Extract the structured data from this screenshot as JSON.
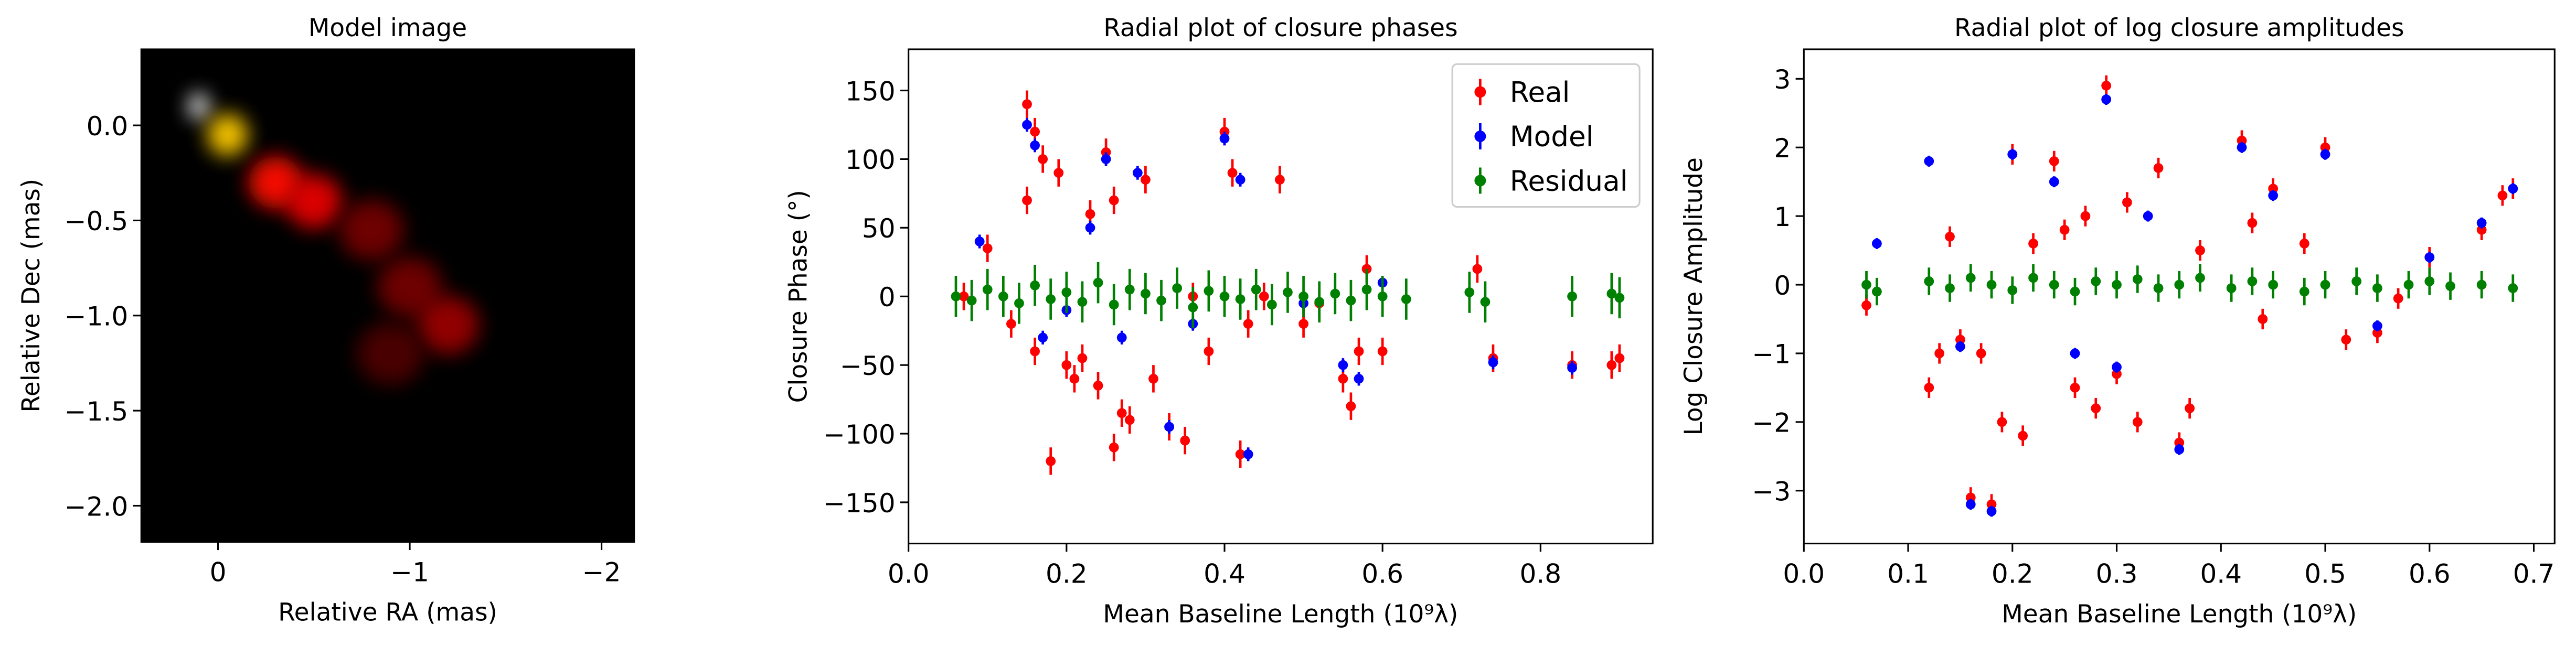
{
  "chart_data": [
    {
      "type": "image",
      "title": "Model image",
      "xlabel": "Relative RA (mas)",
      "ylabel": "Relative Dec (mas)",
      "x": [
        0.1,
        -0.05,
        -0.3,
        -0.5,
        -0.8,
        -1.0,
        -1.2,
        -0.9
      ],
      "y": [
        0.1,
        -0.05,
        -0.3,
        -0.4,
        -0.55,
        -0.85,
        -1.05,
        -1.2
      ],
      "values": [
        1.0,
        0.6,
        0.35,
        0.3,
        0.15,
        0.15,
        0.2,
        0.1
      ],
      "xlim": [
        0.4,
        -2.17
      ],
      "ylim": [
        -2.19,
        0.4
      ],
      "xticks": [
        0,
        {
          "value": -1,
          "label": "−1"
        },
        {
          "value": -2,
          "label": "−2"
        }
      ],
      "yticks": [
        {
          "value": 0,
          "label": "0.0"
        },
        {
          "value": -0.5,
          "label": "−0.5"
        },
        {
          "value": -1,
          "label": "−1.0"
        },
        {
          "value": -1.5,
          "label": "−1.5"
        },
        {
          "value": -2,
          "label": "−2.0"
        }
      ]
    },
    {
      "type": "errorbar",
      "title": "Radial plot of closure phases",
      "xlabel": "Mean Baseline Length (10⁹λ)",
      "ylabel": "Closure Phase (°)",
      "xlim": [
        0,
        0.942
      ],
      "ylim": [
        -180,
        180
      ],
      "xticks": [
        {
          "value": 0,
          "label": "0.0"
        },
        0.2,
        0.4,
        0.6,
        0.8
      ],
      "yticks": [
        {
          "value": -150,
          "label": "−150"
        },
        {
          "value": -100,
          "label": "−100"
        },
        {
          "value": -50,
          "label": "−50"
        },
        0,
        50,
        100,
        150
      ],
      "legend": "upper right",
      "series": [
        {
          "name": "Real",
          "color": "#ff0000",
          "error": 10,
          "x": [
            0.07,
            0.1,
            0.13,
            0.15,
            0.15,
            0.16,
            0.16,
            0.17,
            0.18,
            0.19,
            0.2,
            0.21,
            0.22,
            0.23,
            0.24,
            0.25,
            0.26,
            0.26,
            0.27,
            0.28,
            0.3,
            0.31,
            0.33,
            0.35,
            0.36,
            0.38,
            0.4,
            0.41,
            0.42,
            0.43,
            0.45,
            0.47,
            0.5,
            0.52,
            0.55,
            0.56,
            0.57,
            0.58,
            0.6,
            0.72,
            0.74,
            0.84,
            0.89,
            0.9
          ],
          "values": [
            0,
            35,
            -20,
            140,
            70,
            120,
            -40,
            100,
            -120,
            90,
            -50,
            -60,
            -45,
            60,
            -65,
            105,
            -110,
            70,
            -85,
            -90,
            85,
            -60,
            -95,
            -105,
            0,
            -40,
            120,
            90,
            -115,
            -20,
            0,
            85,
            -20,
            -5,
            -60,
            -80,
            -40,
            20,
            -40,
            20,
            -45,
            -50,
            -50,
            -45
          ]
        },
        {
          "name": "Model",
          "color": "#0000ff",
          "error": 5,
          "x": [
            0.09,
            0.15,
            0.16,
            0.17,
            0.2,
            0.23,
            0.25,
            0.27,
            0.29,
            0.33,
            0.36,
            0.4,
            0.42,
            0.43,
            0.5,
            0.55,
            0.57,
            0.6,
            0.74,
            0.84
          ],
          "values": [
            40,
            125,
            110,
            -30,
            -10,
            50,
            100,
            -30,
            90,
            -95,
            -20,
            115,
            85,
            -115,
            -5,
            -50,
            -60,
            10,
            -48,
            -52
          ]
        },
        {
          "name": "Residual",
          "color": "#008000",
          "error": 15,
          "x": [
            0.06,
            0.08,
            0.1,
            0.12,
            0.14,
            0.16,
            0.18,
            0.2,
            0.22,
            0.24,
            0.26,
            0.28,
            0.3,
            0.32,
            0.34,
            0.36,
            0.38,
            0.4,
            0.42,
            0.44,
            0.46,
            0.48,
            0.5,
            0.52,
            0.54,
            0.56,
            0.58,
            0.6,
            0.63,
            0.71,
            0.73,
            0.84,
            0.89,
            0.9
          ],
          "values": [
            0,
            -3,
            5,
            0,
            -5,
            8,
            -2,
            3,
            -4,
            10,
            -6,
            5,
            2,
            -3,
            6,
            -8,
            4,
            0,
            -2,
            5,
            -6,
            3,
            0,
            -4,
            2,
            -3,
            5,
            0,
            -2,
            3,
            -4,
            0,
            2,
            -1
          ]
        }
      ]
    },
    {
      "type": "errorbar",
      "title": "Radial plot of log closure amplitudes",
      "xlabel": "Mean Baseline Length (10⁹λ)",
      "ylabel": "Log Closure Amplitude",
      "xlim": [
        0,
        0.72
      ],
      "ylim": [
        -3.77,
        3.43
      ],
      "xticks": [
        {
          "value": 0,
          "label": "0.0"
        },
        0.1,
        0.2,
        0.3,
        0.4,
        0.5,
        0.6,
        0.7
      ],
      "yticks": [
        {
          "value": -3,
          "label": "−3"
        },
        {
          "value": -2,
          "label": "−2"
        },
        {
          "value": -1,
          "label": "−1"
        },
        0,
        1,
        2,
        3
      ],
      "series": [
        {
          "name": "Real",
          "color": "#ff0000",
          "error": 0.15,
          "x": [
            0.06,
            0.12,
            0.13,
            0.14,
            0.15,
            0.16,
            0.17,
            0.18,
            0.19,
            0.2,
            0.21,
            0.22,
            0.24,
            0.25,
            0.26,
            0.27,
            0.28,
            0.29,
            0.3,
            0.31,
            0.32,
            0.34,
            0.36,
            0.37,
            0.38,
            0.42,
            0.43,
            0.44,
            0.45,
            0.48,
            0.5,
            0.52,
            0.55,
            0.57,
            0.6,
            0.65,
            0.67,
            0.68
          ],
          "values": [
            -0.3,
            -1.5,
            -1,
            0.7,
            -0.8,
            -3.1,
            -1,
            -3.2,
            -2,
            1.9,
            -2.2,
            0.6,
            1.8,
            0.8,
            -1.5,
            1,
            -1.8,
            2.9,
            -1.3,
            1.2,
            -2,
            1.7,
            -2.3,
            -1.8,
            0.5,
            2.1,
            0.9,
            -0.5,
            1.4,
            0.6,
            2.0,
            -0.8,
            -0.7,
            -0.2,
            0.4,
            0.8,
            1.3,
            1.4
          ]
        },
        {
          "name": "Model",
          "color": "#0000ff",
          "error": 0.08,
          "x": [
            0.07,
            0.12,
            0.15,
            0.16,
            0.18,
            0.2,
            0.24,
            0.26,
            0.29,
            0.3,
            0.33,
            0.36,
            0.42,
            0.45,
            0.5,
            0.55,
            0.6,
            0.65,
            0.68
          ],
          "values": [
            0.6,
            1.8,
            -0.9,
            -3.2,
            -3.3,
            1.9,
            1.5,
            -1.0,
            2.7,
            -1.2,
            1.0,
            -2.4,
            2.0,
            1.3,
            1.9,
            -0.6,
            0.4,
            0.9,
            1.4
          ]
        },
        {
          "name": "Residual",
          "color": "#008000",
          "error": 0.2,
          "x": [
            0.06,
            0.07,
            0.12,
            0.14,
            0.16,
            0.18,
            0.2,
            0.22,
            0.24,
            0.26,
            0.28,
            0.3,
            0.32,
            0.34,
            0.36,
            0.38,
            0.41,
            0.43,
            0.45,
            0.48,
            0.5,
            0.53,
            0.55,
            0.58,
            0.6,
            0.62,
            0.65,
            0.68
          ],
          "values": [
            0,
            -0.1,
            0.05,
            -0.05,
            0.1,
            0,
            -0.08,
            0.1,
            0,
            -0.1,
            0.05,
            0,
            0.08,
            -0.05,
            0,
            0.1,
            -0.05,
            0.05,
            0,
            -0.1,
            0,
            0.05,
            -0.05,
            0,
            0.05,
            -0.02,
            0,
            -0.05
          ]
        }
      ]
    }
  ]
}
